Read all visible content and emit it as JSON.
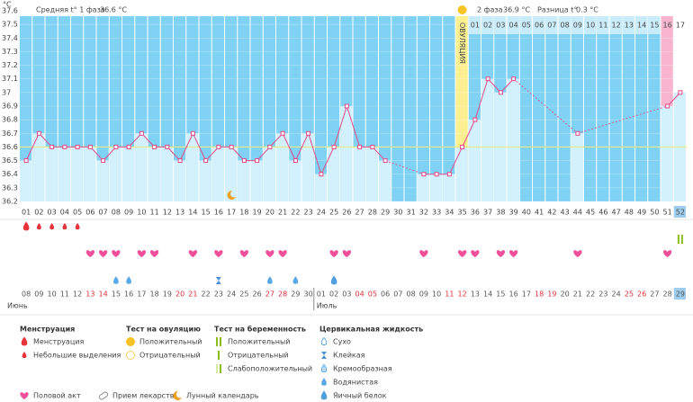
{
  "chart_data": {
    "type": "line",
    "y_label": "°C",
    "summary": [
      {
        "name": "Средняя t° 1 фаза",
        "label": "36.6 °C"
      },
      {
        "name": "2 фаза",
        "label": "36.9 °C"
      },
      {
        "name": "Разница t°",
        "label": "0.3 °C"
      }
    ],
    "ovulation_label": "ОВУЛЯЦИЯ",
    "coverline": 36.6,
    "ylim": [
      36.2,
      37.6
    ],
    "yticks": [
      36.2,
      36.3,
      36.4,
      36.5,
      36.6,
      36.7,
      36.8,
      36.9,
      37,
      37.1,
      37.2,
      37.3,
      37.4,
      37.5,
      37.6
    ],
    "grid": true,
    "categories": [
      "01",
      "02",
      "03",
      "04",
      "05",
      "06",
      "07",
      "08",
      "09",
      "10",
      "11",
      "12",
      "13",
      "14",
      "15",
      "16",
      "17",
      "18",
      "19",
      "20",
      "21",
      "22",
      "23",
      "24",
      "25",
      "26",
      "27",
      "28",
      "29",
      "30",
      "31",
      "32",
      "33",
      "34",
      "35",
      "36",
      "37",
      "38",
      "39",
      "40",
      "41",
      "42",
      "43",
      "44",
      "45",
      "46",
      "47",
      "48",
      "49",
      "50",
      "51",
      "52"
    ],
    "series": [
      {
        "color": "#e24a84",
        "values": [
          36.5,
          36.7,
          36.6,
          36.6,
          36.6,
          36.6,
          36.5,
          36.6,
          36.6,
          36.7,
          36.6,
          36.6,
          36.5,
          36.7,
          36.5,
          36.6,
          36.6,
          36.5,
          36.5,
          36.6,
          36.7,
          36.5,
          36.7,
          36.4,
          36.6,
          36.9,
          36.6,
          36.6,
          36.5,
          null,
          null,
          36.4,
          36.4,
          36.4,
          36.6,
          36.8,
          37.1,
          37.0,
          37.1,
          null,
          null,
          null,
          null,
          36.7,
          null,
          null,
          null,
          null,
          null,
          null,
          36.9,
          37.0
        ]
      }
    ],
    "phase2_days": [
      null,
      null,
      null,
      null,
      null,
      null,
      null,
      null,
      null,
      null,
      null,
      null,
      null,
      null,
      null,
      null,
      null,
      null,
      null,
      null,
      null,
      null,
      null,
      null,
      null,
      null,
      null,
      null,
      null,
      null,
      null,
      null,
      null,
      null,
      null,
      "01",
      "02",
      "03",
      "04",
      "05",
      "06",
      "07",
      "08",
      "09",
      "10",
      "11",
      "12",
      "13",
      "14",
      "15",
      "16",
      "17"
    ],
    "highlights": [
      null,
      null,
      null,
      null,
      null,
      null,
      null,
      null,
      null,
      null,
      null,
      null,
      null,
      null,
      null,
      null,
      null,
      null,
      null,
      null,
      null,
      null,
      null,
      null,
      null,
      null,
      null,
      null,
      null,
      null,
      null,
      null,
      null,
      null,
      "ovulation",
      null,
      null,
      null,
      null,
      null,
      null,
      null,
      null,
      null,
      null,
      null,
      null,
      null,
      null,
      null,
      "expected",
      "today"
    ],
    "highlight_colors": {
      "ovulation": "#fbf08f",
      "expected": "#f7b4cc",
      "today": "#ffffff"
    },
    "events": {
      "ovulation_test": [
        null,
        null,
        null,
        null,
        null,
        null,
        null,
        null,
        null,
        null,
        null,
        null,
        null,
        null,
        null,
        null,
        null,
        null,
        null,
        null,
        null,
        null,
        null,
        null,
        null,
        null,
        null,
        null,
        null,
        null,
        null,
        null,
        null,
        null,
        "ovu-pos",
        null,
        null,
        null,
        null,
        null,
        null,
        null,
        null,
        null,
        null,
        null,
        null,
        null,
        null,
        null,
        null,
        null
      ],
      "lunar": [
        null,
        null,
        null,
        null,
        null,
        null,
        null,
        null,
        null,
        null,
        null,
        null,
        null,
        null,
        null,
        null,
        "moon",
        null,
        null,
        null,
        null,
        null,
        null,
        null,
        null,
        null,
        null,
        null,
        null,
        null,
        null,
        null,
        null,
        null,
        null,
        null,
        null,
        null,
        null,
        null,
        null,
        null,
        null,
        null,
        null,
        null,
        null,
        null,
        null,
        null,
        null,
        null
      ],
      "menstruation": [
        "drop",
        "drop-small",
        "drop-small",
        "drop-small",
        "drop-small",
        null,
        null,
        null,
        null,
        null,
        null,
        null,
        null,
        null,
        null,
        null,
        null,
        null,
        null,
        null,
        null,
        null,
        null,
        null,
        null,
        null,
        null,
        null,
        null,
        null,
        null,
        null,
        null,
        null,
        null,
        null,
        null,
        null,
        null,
        null,
        null,
        null,
        null,
        null,
        null,
        null,
        null,
        null,
        null,
        null,
        null,
        null
      ],
      "pregnancy_test": [
        null,
        null,
        null,
        null,
        null,
        null,
        null,
        null,
        null,
        null,
        null,
        null,
        null,
        null,
        null,
        null,
        null,
        null,
        null,
        null,
        null,
        null,
        null,
        null,
        null,
        null,
        null,
        null,
        null,
        null,
        null,
        null,
        null,
        null,
        null,
        null,
        null,
        null,
        null,
        null,
        null,
        null,
        null,
        null,
        null,
        null,
        null,
        null,
        null,
        null,
        null,
        "preg-pos"
      ],
      "sex": [
        null,
        null,
        null,
        null,
        null,
        "heart",
        "heart",
        "heart",
        null,
        "heart",
        "heart",
        null,
        null,
        "heart",
        null,
        "heart",
        null,
        "heart",
        null,
        "heart",
        "heart",
        null,
        null,
        null,
        "heart",
        "heart",
        null,
        null,
        null,
        null,
        null,
        "heart",
        null,
        null,
        "heart",
        "heart",
        null,
        "heart",
        "heart",
        null,
        null,
        null,
        null,
        "heart",
        null,
        null,
        null,
        null,
        null,
        null,
        "heart",
        null
      ],
      "fluid": [
        null,
        null,
        null,
        null,
        null,
        null,
        null,
        "watery",
        "watery",
        null,
        null,
        null,
        null,
        null,
        null,
        "sticky",
        null,
        null,
        null,
        "watery",
        null,
        "watery",
        null,
        null,
        "eggwhite",
        null,
        null,
        null,
        null,
        null,
        null,
        null,
        null,
        null,
        null,
        null,
        null,
        null,
        null,
        null,
        null,
        null,
        null,
        null,
        null,
        null,
        null,
        null,
        null,
        null,
        null,
        null
      ]
    },
    "dates": [
      "08",
      "09",
      "10",
      "11",
      "12",
      "13",
      "14",
      "15",
      "16",
      "17",
      "18",
      "19",
      "20",
      "21",
      "22",
      "23",
      "24",
      "25",
      "26",
      "27",
      "28",
      "29",
      "30",
      "01",
      "02",
      "03",
      "04",
      "05",
      "06",
      "07",
      "08",
      "09",
      "10",
      "11",
      "12",
      "13",
      "14",
      "15",
      "16",
      "17",
      "18",
      "19",
      "20",
      "21",
      "22",
      "23",
      "24",
      "25",
      "26",
      "27",
      "28",
      "29"
    ],
    "weekend": [
      false,
      false,
      false,
      false,
      false,
      true,
      true,
      false,
      false,
      false,
      false,
      false,
      true,
      true,
      false,
      false,
      false,
      false,
      false,
      true,
      true,
      false,
      false,
      false,
      false,
      false,
      true,
      true,
      false,
      false,
      false,
      false,
      false,
      true,
      true,
      false,
      false,
      false,
      false,
      false,
      true,
      true,
      false,
      false,
      false,
      false,
      false,
      true,
      true,
      false,
      false,
      false
    ],
    "months": [
      "Июнь",
      "Июль"
    ],
    "legend": [
      {
        "title": "Менструация",
        "items": [
          {
            "label": "Менструация",
            "icon": "drop"
          },
          {
            "label": "Небольшие выделения",
            "icon": "drop-small"
          }
        ]
      },
      {
        "title": "Тест на овуляцию",
        "items": [
          {
            "label": "Положительный",
            "icon": "ovu-pos"
          },
          {
            "label": "Отрицательный",
            "icon": "ovu-neg"
          }
        ]
      },
      {
        "title": "Тест на беременность",
        "items": [
          {
            "label": "Положительный",
            "icon": "preg-pos"
          },
          {
            "label": "Отрицательный",
            "icon": "preg-neg"
          },
          {
            "label": "Слабоположительный",
            "icon": "preg-weak"
          }
        ]
      },
      {
        "title": "Цервикальная жидкость",
        "items": [
          {
            "label": "Сухо",
            "icon": "dry"
          },
          {
            "label": "Клейкая",
            "icon": "sticky"
          },
          {
            "label": "Кремообразная",
            "icon": "creamy"
          },
          {
            "label": "Водянистая",
            "icon": "watery"
          },
          {
            "label": "Яичный белок",
            "icon": "eggwhite"
          }
        ]
      }
    ],
    "legend_extra": [
      {
        "label": "Половой акт",
        "icon": "heart"
      },
      {
        "label": "Прием лекарств",
        "icon": "pill"
      },
      {
        "label": "Лунный календарь",
        "icon": "moon"
      }
    ]
  }
}
